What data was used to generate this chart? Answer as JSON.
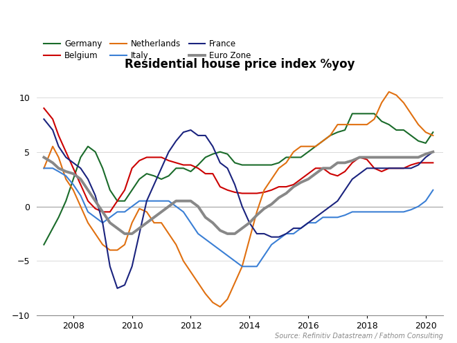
{
  "title": "Residential house price index %yoy",
  "source": "Source: Refinitiv Datastream / Fathom Consulting",
  "ylim": [
    -10,
    12
  ],
  "yticks": [
    -10,
    -5,
    0,
    5,
    10
  ],
  "xlim": [
    2006.75,
    2020.6
  ],
  "xticks": [
    2008,
    2010,
    2012,
    2014,
    2016,
    2018,
    2020
  ],
  "background_color": "#ffffff",
  "legend_order": [
    "Germany",
    "Belgium",
    "Netherlands",
    "Italy",
    "France",
    "Euro Zone"
  ],
  "colors": {
    "Germany": "#1a6b2a",
    "Belgium": "#cc0000",
    "Netherlands": "#e07010",
    "Italy": "#3a7fd5",
    "France": "#1a237e",
    "Euro Zone": "#888888"
  },
  "linewidths": {
    "Germany": 1.5,
    "Belgium": 1.5,
    "Netherlands": 1.5,
    "Italy": 1.5,
    "France": 1.5,
    "Euro Zone": 2.8
  },
  "series": {
    "Germany": {
      "x": [
        2007.0,
        2007.3,
        2007.5,
        2007.75,
        2008.0,
        2008.25,
        2008.5,
        2008.75,
        2009.0,
        2009.25,
        2009.5,
        2009.75,
        2010.0,
        2010.25,
        2010.5,
        2010.75,
        2011.0,
        2011.25,
        2011.5,
        2011.75,
        2012.0,
        2012.25,
        2012.5,
        2012.75,
        2013.0,
        2013.25,
        2013.5,
        2013.75,
        2014.0,
        2014.25,
        2014.5,
        2014.75,
        2015.0,
        2015.25,
        2015.5,
        2015.75,
        2016.0,
        2016.25,
        2016.5,
        2016.75,
        2017.0,
        2017.25,
        2017.5,
        2017.75,
        2018.0,
        2018.25,
        2018.5,
        2018.75,
        2019.0,
        2019.25,
        2019.5,
        2019.75,
        2020.0,
        2020.25
      ],
      "y": [
        -3.5,
        -2.0,
        -1.0,
        0.5,
        2.5,
        4.5,
        5.5,
        5.0,
        3.5,
        1.5,
        0.5,
        0.5,
        1.5,
        2.5,
        3.0,
        2.8,
        2.5,
        2.8,
        3.5,
        3.5,
        3.2,
        3.8,
        4.5,
        4.8,
        5.0,
        4.8,
        4.0,
        3.8,
        3.8,
        3.8,
        3.8,
        3.8,
        4.0,
        4.5,
        4.5,
        4.5,
        5.0,
        5.5,
        6.0,
        6.5,
        6.8,
        7.0,
        8.5,
        8.5,
        8.5,
        8.5,
        7.8,
        7.5,
        7.0,
        7.0,
        6.5,
        6.0,
        5.8,
        6.8
      ]
    },
    "Belgium": {
      "x": [
        2007.0,
        2007.3,
        2007.5,
        2007.75,
        2008.0,
        2008.25,
        2008.5,
        2008.75,
        2009.0,
        2009.25,
        2009.5,
        2009.75,
        2010.0,
        2010.25,
        2010.5,
        2010.75,
        2011.0,
        2011.25,
        2011.5,
        2011.75,
        2012.0,
        2012.25,
        2012.5,
        2012.75,
        2013.0,
        2013.25,
        2013.5,
        2013.75,
        2014.0,
        2014.25,
        2014.5,
        2014.75,
        2015.0,
        2015.25,
        2015.5,
        2015.75,
        2016.0,
        2016.25,
        2016.5,
        2016.75,
        2017.0,
        2017.25,
        2017.5,
        2017.75,
        2018.0,
        2018.25,
        2018.5,
        2018.75,
        2019.0,
        2019.25,
        2019.5,
        2019.75,
        2020.0,
        2020.25
      ],
      "y": [
        9.0,
        8.0,
        6.5,
        5.0,
        3.5,
        2.0,
        0.5,
        -0.2,
        -0.5,
        -0.5,
        0.5,
        1.5,
        3.5,
        4.2,
        4.5,
        4.5,
        4.5,
        4.2,
        4.0,
        3.8,
        3.8,
        3.5,
        3.0,
        3.0,
        1.8,
        1.5,
        1.3,
        1.2,
        1.2,
        1.2,
        1.3,
        1.5,
        1.8,
        1.8,
        2.0,
        2.5,
        3.0,
        3.5,
        3.5,
        3.0,
        2.8,
        3.2,
        4.0,
        4.5,
        4.3,
        3.5,
        3.2,
        3.5,
        3.5,
        3.5,
        3.8,
        4.0,
        4.0,
        4.0
      ]
    },
    "Netherlands": {
      "x": [
        2007.0,
        2007.3,
        2007.5,
        2007.75,
        2008.0,
        2008.25,
        2008.5,
        2008.75,
        2009.0,
        2009.25,
        2009.5,
        2009.75,
        2010.0,
        2010.25,
        2010.5,
        2010.75,
        2011.0,
        2011.25,
        2011.5,
        2011.75,
        2012.0,
        2012.25,
        2012.5,
        2012.75,
        2013.0,
        2013.25,
        2013.5,
        2013.75,
        2014.0,
        2014.25,
        2014.5,
        2014.75,
        2015.0,
        2015.25,
        2015.5,
        2015.75,
        2016.0,
        2016.25,
        2016.5,
        2016.75,
        2017.0,
        2017.25,
        2017.5,
        2017.75,
        2018.0,
        2018.25,
        2018.5,
        2018.75,
        2019.0,
        2019.25,
        2019.5,
        2019.75,
        2020.0,
        2020.25
      ],
      "y": [
        3.5,
        5.5,
        4.5,
        2.5,
        1.5,
        0.0,
        -1.5,
        -2.5,
        -3.5,
        -4.0,
        -4.0,
        -3.5,
        -1.5,
        -0.2,
        -0.5,
        -1.5,
        -1.5,
        -2.5,
        -3.5,
        -5.0,
        -6.0,
        -7.0,
        -8.0,
        -8.8,
        -9.2,
        -8.5,
        -7.0,
        -5.5,
        -3.0,
        -0.5,
        1.5,
        2.5,
        3.5,
        4.0,
        5.0,
        5.5,
        5.5,
        5.5,
        6.0,
        6.5,
        7.5,
        7.5,
        7.5,
        7.5,
        7.5,
        8.0,
        9.5,
        10.5,
        10.2,
        9.5,
        8.5,
        7.5,
        6.8,
        6.5
      ]
    },
    "Italy": {
      "x": [
        2007.0,
        2007.3,
        2007.5,
        2007.75,
        2008.0,
        2008.25,
        2008.5,
        2008.75,
        2009.0,
        2009.25,
        2009.5,
        2009.75,
        2010.0,
        2010.25,
        2010.5,
        2010.75,
        2011.0,
        2011.25,
        2011.5,
        2011.75,
        2012.0,
        2012.25,
        2012.5,
        2012.75,
        2013.0,
        2013.25,
        2013.5,
        2013.75,
        2014.0,
        2014.25,
        2014.5,
        2014.75,
        2015.0,
        2015.25,
        2015.5,
        2015.75,
        2016.0,
        2016.25,
        2016.5,
        2016.75,
        2017.0,
        2017.25,
        2017.5,
        2017.75,
        2018.0,
        2018.25,
        2018.5,
        2018.75,
        2019.0,
        2019.25,
        2019.5,
        2019.75,
        2020.0,
        2020.25
      ],
      "y": [
        3.5,
        3.5,
        3.2,
        2.8,
        2.0,
        1.0,
        -0.5,
        -1.0,
        -1.5,
        -1.0,
        -0.5,
        -0.5,
        0.0,
        0.5,
        0.5,
        0.5,
        0.5,
        0.5,
        0.0,
        -0.5,
        -1.5,
        -2.5,
        -3.0,
        -3.5,
        -4.0,
        -4.5,
        -5.0,
        -5.5,
        -5.5,
        -5.5,
        -4.5,
        -3.5,
        -3.0,
        -2.5,
        -2.5,
        -2.0,
        -1.5,
        -1.5,
        -1.0,
        -1.0,
        -1.0,
        -0.8,
        -0.5,
        -0.5,
        -0.5,
        -0.5,
        -0.5,
        -0.5,
        -0.5,
        -0.5,
        -0.3,
        0.0,
        0.5,
        1.5
      ]
    },
    "France": {
      "x": [
        2007.0,
        2007.3,
        2007.5,
        2007.75,
        2008.0,
        2008.25,
        2008.5,
        2008.75,
        2009.0,
        2009.25,
        2009.5,
        2009.75,
        2010.0,
        2010.25,
        2010.5,
        2010.75,
        2011.0,
        2011.25,
        2011.5,
        2011.75,
        2012.0,
        2012.25,
        2012.5,
        2012.75,
        2013.0,
        2013.25,
        2013.5,
        2013.75,
        2014.0,
        2014.25,
        2014.5,
        2014.75,
        2015.0,
        2015.25,
        2015.5,
        2015.75,
        2016.0,
        2016.25,
        2016.5,
        2016.75,
        2017.0,
        2017.25,
        2017.5,
        2017.75,
        2018.0,
        2018.25,
        2018.5,
        2018.75,
        2019.0,
        2019.25,
        2019.5,
        2019.75,
        2020.0,
        2020.25
      ],
      "y": [
        8.0,
        7.0,
        5.5,
        4.5,
        4.0,
        3.5,
        2.5,
        1.0,
        -1.5,
        -5.5,
        -7.5,
        -7.2,
        -5.5,
        -2.5,
        0.5,
        2.0,
        3.5,
        5.0,
        6.0,
        6.8,
        7.0,
        6.5,
        6.5,
        5.5,
        4.0,
        3.5,
        2.0,
        0.0,
        -1.5,
        -2.5,
        -2.5,
        -2.8,
        -2.8,
        -2.5,
        -2.0,
        -2.0,
        -1.5,
        -1.0,
        -0.5,
        0.0,
        0.5,
        1.5,
        2.5,
        3.0,
        3.5,
        3.5,
        3.5,
        3.5,
        3.5,
        3.5,
        3.5,
        3.8,
        4.5,
        5.0
      ]
    },
    "Euro Zone": {
      "x": [
        2007.0,
        2007.3,
        2007.5,
        2007.75,
        2008.0,
        2008.25,
        2008.5,
        2008.75,
        2009.0,
        2009.25,
        2009.5,
        2009.75,
        2010.0,
        2010.25,
        2010.5,
        2010.75,
        2011.0,
        2011.25,
        2011.5,
        2011.75,
        2012.0,
        2012.25,
        2012.5,
        2012.75,
        2013.0,
        2013.25,
        2013.5,
        2013.75,
        2014.0,
        2014.25,
        2014.5,
        2014.75,
        2015.0,
        2015.25,
        2015.5,
        2015.75,
        2016.0,
        2016.25,
        2016.5,
        2016.75,
        2017.0,
        2017.25,
        2017.5,
        2017.75,
        2018.0,
        2018.25,
        2018.5,
        2018.75,
        2019.0,
        2019.25,
        2019.5,
        2019.75,
        2020.0,
        2020.25
      ],
      "y": [
        4.5,
        4.0,
        3.5,
        3.2,
        3.0,
        2.5,
        1.5,
        0.5,
        -0.5,
        -1.5,
        -2.0,
        -2.5,
        -2.5,
        -2.0,
        -1.5,
        -1.0,
        -0.5,
        0.0,
        0.5,
        0.5,
        0.5,
        0.0,
        -1.0,
        -1.5,
        -2.2,
        -2.5,
        -2.5,
        -2.0,
        -1.5,
        -0.8,
        -0.2,
        0.2,
        0.8,
        1.2,
        1.8,
        2.2,
        2.5,
        3.0,
        3.5,
        3.5,
        4.0,
        4.0,
        4.2,
        4.5,
        4.5,
        4.5,
        4.5,
        4.5,
        4.5,
        4.5,
        4.5,
        4.5,
        4.8,
        5.0
      ]
    }
  }
}
